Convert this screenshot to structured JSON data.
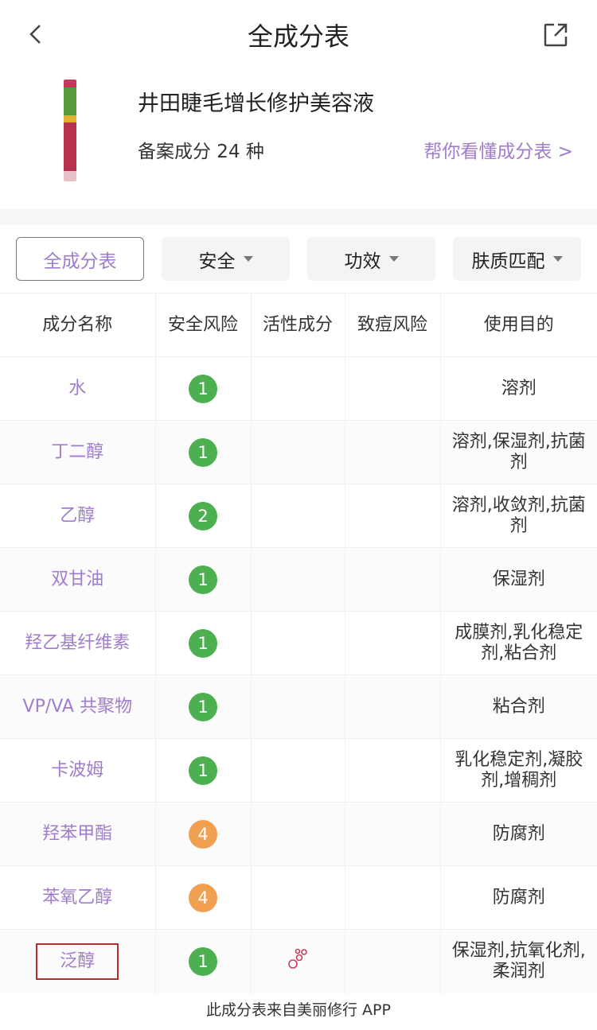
{
  "nav": {
    "title": "全成分表",
    "back_icon": "chevron-left-icon",
    "share_icon": "share-icon"
  },
  "product": {
    "name": "井田睫毛增长修护美容液",
    "count_text": "备案成分 24 种",
    "help_link": "帮你看懂成分表 >"
  },
  "tabs": [
    {
      "label": "全成分表",
      "active": true
    },
    {
      "label": "安全"
    },
    {
      "label": "功效"
    },
    {
      "label": "肤质匹配"
    }
  ],
  "table": {
    "headers": [
      "成分名称",
      "安全风险",
      "活性成分",
      "致痘风险",
      "使用目的"
    ],
    "rows": [
      {
        "name": "水",
        "risk": "1",
        "active": false,
        "purpose": "溶剂"
      },
      {
        "name": "丁二醇",
        "risk": "1",
        "active": false,
        "purpose": "溶剂,保湿剂,抗菌剂"
      },
      {
        "name": "乙醇",
        "risk": "2",
        "active": false,
        "purpose": "溶剂,收敛剂,抗菌剂"
      },
      {
        "name": "双甘油",
        "risk": "1",
        "active": false,
        "purpose": "保湿剂"
      },
      {
        "name": "羟乙基纤维素",
        "risk": "1",
        "active": false,
        "purpose": "成膜剂,乳化稳定剂,粘合剂"
      },
      {
        "name": "VP/VA 共聚物",
        "risk": "1",
        "active": false,
        "purpose": "粘合剂"
      },
      {
        "name": "卡波姆",
        "risk": "1",
        "active": false,
        "purpose": "乳化稳定剂,凝胶剂,增稠剂"
      },
      {
        "name": "羟苯甲酯",
        "risk": "4",
        "active": false,
        "purpose": "防腐剂"
      },
      {
        "name": "苯氧乙醇",
        "risk": "4",
        "active": false,
        "purpose": "防腐剂"
      },
      {
        "name": "泛醇",
        "risk": "1",
        "active": true,
        "purpose": "保湿剂,抗氧化剂,柔润剂",
        "highlighted": true
      }
    ]
  },
  "colors": {
    "accent": "#a07ccc",
    "risk_low": "#4caf50",
    "risk_mid": "#f0a050",
    "highlight": "#b03030"
  },
  "footer": "此成分表来自美丽修行 APP"
}
